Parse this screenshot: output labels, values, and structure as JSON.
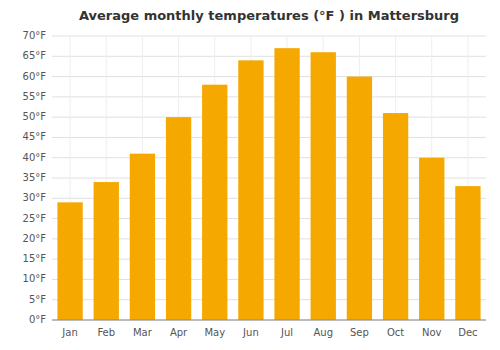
{
  "chart_data": {
    "type": "bar",
    "title": "Average monthly temperatures (°F ) in Mattersburg",
    "categories": [
      "Jan",
      "Feb",
      "Mar",
      "Apr",
      "May",
      "Jun",
      "Jul",
      "Aug",
      "Sep",
      "Oct",
      "Nov",
      "Dec"
    ],
    "values": [
      29,
      34,
      41,
      50,
      58,
      64,
      67,
      66,
      60,
      51,
      40,
      33
    ],
    "color": "#F5A800",
    "ylim": [
      0,
      70
    ],
    "yticks": [
      {
        "value": 0,
        "label": "0°F"
      },
      {
        "value": 5,
        "label": "5°F"
      },
      {
        "value": 10,
        "label": "10°F"
      },
      {
        "value": 15,
        "label": "15°F"
      },
      {
        "value": 20,
        "label": "20°F"
      },
      {
        "value": 25,
        "label": "25°F"
      },
      {
        "value": 30,
        "label": "30°F"
      },
      {
        "value": 35,
        "label": "35°F"
      },
      {
        "value": 40,
        "label": "40°F"
      },
      {
        "value": 45,
        "label": "45°F"
      },
      {
        "value": 50,
        "label": "50°F"
      },
      {
        "value": 55,
        "label": "55°F"
      },
      {
        "value": 60,
        "label": "60°F"
      },
      {
        "value": 65,
        "label": "65°F"
      },
      {
        "value": 70,
        "label": "70°F"
      }
    ],
    "grid": true
  }
}
